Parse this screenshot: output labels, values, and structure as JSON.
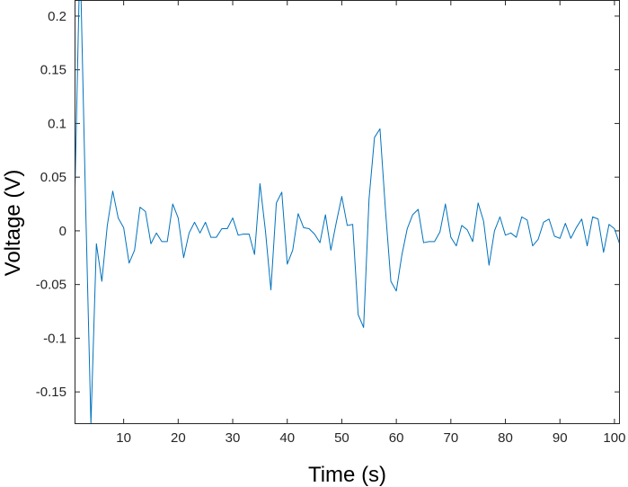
{
  "chart_data": {
    "type": "line",
    "xlabel": "Time (s)",
    "ylabel": "Voltage (V)",
    "xlim": [
      1,
      101
    ],
    "ylim": [
      -0.18,
      0.215
    ],
    "xticks": [
      10,
      20,
      30,
      40,
      50,
      60,
      70,
      80,
      90,
      100
    ],
    "xtick_labels": [
      "10",
      "20",
      "30",
      "40",
      "50",
      "60",
      "70",
      "80",
      "90",
      "100"
    ],
    "yticks": [
      -0.15,
      -0.1,
      -0.05,
      0,
      0.05,
      0.1,
      0.15,
      0.2
    ],
    "ytick_labels": [
      "-0.15",
      "-0.1",
      "-0.05",
      "0",
      "0.05",
      "0.1",
      "0.15",
      "0.2"
    ],
    "grid": false,
    "line_color": "#0072BD",
    "series": [
      {
        "x": [
          1,
          2,
          3,
          4,
          5,
          6,
          7,
          8,
          9,
          10,
          11,
          12,
          13,
          14,
          15,
          16,
          17,
          18,
          19,
          20,
          21,
          22,
          23,
          24,
          25,
          26,
          27,
          28,
          29,
          30,
          31,
          32,
          33,
          34,
          35,
          36,
          37,
          38,
          39,
          40,
          41,
          42,
          43,
          44,
          45,
          46,
          47,
          48,
          49,
          50,
          51,
          52,
          53,
          54,
          55,
          56,
          57,
          58,
          59,
          60,
          61,
          62,
          63,
          64,
          65,
          66,
          67,
          68,
          69,
          70,
          71,
          72,
          73,
          74,
          75,
          76,
          77,
          78,
          79,
          80,
          81,
          82,
          83,
          84,
          85,
          86,
          87,
          88,
          89,
          90,
          91,
          92,
          93,
          94,
          95,
          96,
          97,
          98,
          99,
          100,
          101
        ],
        "values": [
          0.02,
          0.26,
          0.03,
          -0.18,
          -0.012,
          -0.047,
          0.005,
          0.037,
          0.012,
          0.003,
          -0.03,
          -0.018,
          0.022,
          0.018,
          -0.012,
          -0.002,
          -0.01,
          -0.01,
          0.025,
          0.012,
          -0.025,
          -0.002,
          0.008,
          -0.002,
          0.008,
          -0.006,
          -0.006,
          0.002,
          0.002,
          0.012,
          -0.004,
          -0.003,
          -0.003,
          -0.022,
          0.044,
          0.0,
          -0.055,
          0.026,
          0.036,
          -0.031,
          -0.018,
          0.016,
          0.003,
          0.002,
          -0.003,
          -0.011,
          0.015,
          -0.018,
          0.008,
          0.032,
          0.005,
          0.006,
          -0.078,
          -0.09,
          0.03,
          0.087,
          0.095,
          0.02,
          -0.047,
          -0.056,
          -0.023,
          0.002,
          0.015,
          0.02,
          -0.011,
          -0.01,
          -0.01,
          -0.001,
          0.025,
          -0.006,
          -0.014,
          0.005,
          0.001,
          -0.01,
          0.026,
          0.009,
          -0.032,
          0.0,
          0.013,
          -0.004,
          -0.002,
          -0.006,
          0.013,
          0.01,
          -0.014,
          -0.008,
          0.008,
          0.011,
          -0.005,
          -0.007,
          0.007,
          -0.007,
          0.003,
          0.011,
          -0.014,
          0.013,
          0.011,
          -0.02,
          0.006,
          0.002,
          -0.013
        ]
      }
    ]
  }
}
